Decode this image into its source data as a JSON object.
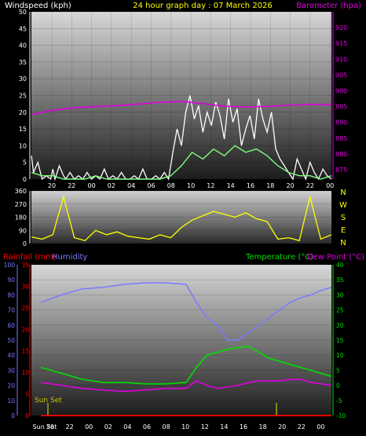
{
  "header": {
    "left_label": "Windspeed (kph)",
    "center_label": "24 hour graph day : 07 March 2026",
    "right_label": "Barometer (hpa)"
  },
  "middle_header": {
    "rain_label": "Rainfall (mm)",
    "humidity_label": "Humidity",
    "temp_label": "Temperature (°C)",
    "dew_label": "Dew Point (°C)"
  },
  "sun_set_label": "Sun Set",
  "colors": {
    "wind": "#ffffff",
    "wind_avg": "#7cff7c",
    "baro": "#e000e0",
    "direction": "#ffff00",
    "humidity": "#7a7aff",
    "temperature": "#00e000",
    "dew": "#e000e0",
    "rain": "#ff0000",
    "sun": "#c8c800"
  },
  "chart_data": [
    {
      "type": "line",
      "id": "wind_baro",
      "x_ticks": [
        "20",
        "22",
        "00",
        "02",
        "04",
        "06",
        "08",
        "10",
        "12",
        "14",
        "16",
        "18",
        "20",
        "22",
        "00"
      ],
      "left_axis": {
        "label": "Windspeed (kph)",
        "ylim": [
          0,
          50
        ],
        "ticks": [
          0,
          5,
          10,
          15,
          20,
          25,
          30,
          35,
          40,
          45,
          50
        ]
      },
      "right_axis": {
        "label": "Barometer (hpa)",
        "ylim": [
          872,
          925
        ],
        "ticks": [
          875,
          880,
          885,
          890,
          895,
          900,
          905,
          910,
          915,
          920
        ]
      },
      "series": [
        {
          "name": "Windspeed (kph)",
          "axis": "left",
          "x": [
            0,
            0.1,
            0.3,
            0.5,
            0.7,
            0.9,
            1.0,
            1.1,
            1.3,
            1.5,
            1.6,
            1.8,
            2,
            2.2,
            2.4,
            2.6,
            2.8,
            3,
            3.2,
            3.4,
            3.6,
            3.8,
            4,
            4.2,
            4.4,
            4.6,
            4.8,
            5,
            5.2,
            5.4,
            5.6,
            5.8,
            6,
            6.2,
            6.4,
            6.6,
            6.8,
            7,
            7.2,
            7.4,
            7.6,
            7.8,
            8,
            8.2,
            8.4,
            8.6,
            8.8,
            9,
            9.2,
            9.4,
            9.6,
            9.8,
            10,
            10.2,
            10.4,
            10.6,
            10.8,
            11,
            11.2,
            11.4,
            11.6,
            11.8,
            12,
            12.2,
            12.4,
            12.6,
            12.8,
            13,
            13.2,
            13.4,
            13.6,
            13.8,
            14
          ],
          "values": [
            7,
            2,
            5,
            0,
            1,
            0,
            3,
            0,
            4,
            1,
            0,
            2,
            0,
            1,
            0,
            2,
            0,
            1,
            0,
            3,
            0,
            1,
            0,
            2,
            0,
            0,
            1,
            0,
            3,
            0,
            0,
            1,
            0,
            2,
            0,
            8,
            15,
            10,
            20,
            25,
            18,
            22,
            14,
            20,
            16,
            23,
            19,
            12,
            24,
            17,
            21,
            10,
            15,
            19,
            12,
            24,
            18,
            14,
            20,
            9,
            6,
            4,
            2,
            0,
            6,
            3,
            0,
            5,
            2,
            0,
            3,
            1,
            0
          ]
        },
        {
          "name": "Average windspeed",
          "axis": "left",
          "x": [
            0,
            0.5,
            1,
            1.5,
            2,
            2.5,
            3,
            3.5,
            4,
            4.5,
            5,
            5.5,
            6,
            6.5,
            7,
            7.5,
            8,
            8.5,
            9,
            9.5,
            10,
            10.5,
            11,
            11.5,
            12,
            12.5,
            13,
            13.5,
            14
          ],
          "values": [
            2,
            1,
            1,
            0,
            0,
            0,
            1,
            0,
            0,
            0,
            0,
            0,
            0,
            1,
            4,
            8,
            6,
            9,
            7,
            10,
            8,
            9,
            7,
            4,
            2,
            1,
            1,
            0,
            1
          ]
        },
        {
          "name": "Barometer (hpa)",
          "axis": "right",
          "x": [
            0,
            1,
            2,
            3,
            4,
            5,
            6,
            7,
            8,
            9,
            10,
            11,
            12,
            13,
            14
          ],
          "values": [
            892.5,
            893.8,
            894.6,
            895.0,
            895.3,
            895.8,
            896.3,
            896.6,
            895.9,
            895.1,
            894.9,
            895.0,
            895.4,
            895.7,
            895.6
          ]
        }
      ]
    },
    {
      "type": "line",
      "id": "direction",
      "left_axis": {
        "ylim": [
          0,
          360
        ],
        "ticks": [
          0,
          90,
          180,
          270,
          360
        ]
      },
      "right_labels": [
        "N",
        "W",
        "S",
        "E",
        "N"
      ],
      "series": [
        {
          "name": "Wind direction",
          "x": [
            0,
            0.5,
            1,
            1.5,
            2,
            2.5,
            3,
            3.5,
            4,
            4.5,
            5,
            5.5,
            6,
            6.5,
            7,
            7.5,
            8,
            8.5,
            9,
            9.5,
            10,
            10.5,
            11,
            11.5,
            12,
            12.5,
            13,
            13.5,
            14
          ],
          "values": [
            45,
            30,
            60,
            320,
            40,
            20,
            90,
            60,
            80,
            50,
            40,
            30,
            60,
            40,
            110,
            160,
            190,
            220,
            200,
            180,
            210,
            170,
            150,
            30,
            40,
            20,
            320,
            30,
            60
          ]
        }
      ]
    },
    {
      "type": "line",
      "id": "temp_hum_rain",
      "x_ticks": [
        "Sun Set",
        "20",
        "22",
        "00",
        "02",
        "04",
        "06",
        "08",
        "10",
        "12",
        "14",
        "16",
        "18",
        "20",
        "22",
        "00"
      ],
      "left_axis_humidity": {
        "label": "Humidity",
        "ylim": [
          0,
          100
        ],
        "ticks": [
          0,
          10,
          20,
          30,
          40,
          50,
          60,
          70,
          80,
          90,
          100
        ]
      },
      "left_axis_rain": {
        "label": "Rainfall (mm)",
        "ylim": [
          0,
          35
        ],
        "ticks": [
          0,
          5,
          10,
          15,
          20,
          25,
          30,
          35
        ]
      },
      "right_axis": {
        "label": "Temperature (°C)",
        "ylim": [
          -10,
          40
        ],
        "ticks": [
          -10,
          -5,
          0,
          5,
          10,
          15,
          20,
          25,
          30,
          35,
          40
        ]
      },
      "series": [
        {
          "name": "Humidity",
          "axis": "humidity",
          "x": [
            0,
            1,
            2,
            3,
            4,
            5,
            6,
            7,
            7.5,
            8,
            8.5,
            9,
            9.5,
            10,
            10.5,
            11,
            11.5,
            12,
            12.5,
            13,
            13.5,
            14
          ],
          "values": [
            75,
            80,
            84,
            85,
            87,
            88,
            88,
            87,
            75,
            65,
            60,
            50,
            50,
            55,
            60,
            65,
            70,
            75,
            78,
            80,
            83,
            85
          ]
        },
        {
          "name": "Temperature (°C)",
          "axis": "temp",
          "x": [
            0,
            1,
            2,
            3,
            4,
            5,
            6,
            7,
            7.5,
            8,
            8.5,
            9,
            9.5,
            10,
            10.5,
            11,
            11.5,
            12,
            12.5,
            13,
            13.5,
            14
          ],
          "values": [
            6,
            4,
            2,
            1,
            1,
            0.5,
            0.5,
            1,
            6,
            10,
            11,
            12,
            12.5,
            13,
            11,
            9,
            8,
            7,
            6,
            5,
            4,
            3
          ]
        },
        {
          "name": "Dew Point (°C)",
          "axis": "temp",
          "x": [
            0,
            1,
            2,
            3,
            4,
            5,
            6,
            7,
            7.5,
            8,
            8.5,
            9,
            9.5,
            10,
            10.5,
            11,
            11.5,
            12,
            12.5,
            13,
            13.5,
            14
          ],
          "values": [
            1,
            0,
            -1,
            -1.5,
            -2,
            -1.5,
            -1,
            -1,
            1.5,
            0,
            -1,
            -0.5,
            0,
            1,
            1.5,
            1.5,
            1.5,
            2,
            2,
            1,
            0.5,
            0
          ]
        },
        {
          "name": "Rainfall (mm)",
          "axis": "rain",
          "x": [
            0,
            14
          ],
          "values": [
            0,
            0
          ]
        }
      ]
    }
  ]
}
